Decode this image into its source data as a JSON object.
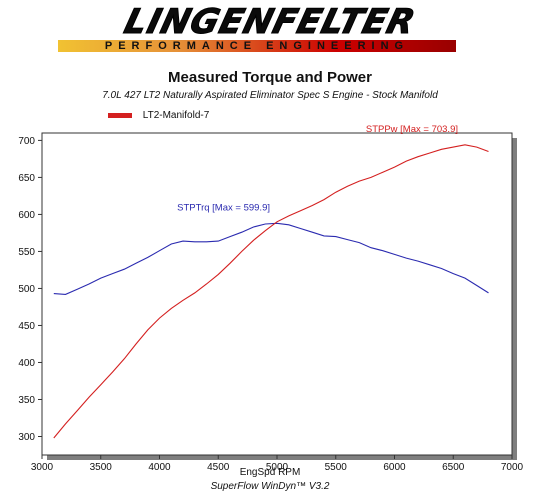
{
  "logo": {
    "wordmark": "LINGENFELTER",
    "tagline": "PERFORMANCE ENGINEERING"
  },
  "footer": "SuperFlow WinDyn™ V3.2",
  "chart_data": {
    "type": "line",
    "title": "Measured Torque and Power",
    "subtitle": "7.0L 427 LT2 Naturally Aspirated Eliminator Spec S Engine - Stock Manifold",
    "legend": {
      "entries": [
        "LT2-Manifold-7"
      ],
      "placement": "top-left"
    },
    "xlabel": "EngSpd RPM",
    "ylabel": "",
    "xlim": [
      3000,
      7000
    ],
    "ylim": [
      275,
      710
    ],
    "xticks": [
      3000,
      3500,
      4000,
      4500,
      5000,
      5500,
      6000,
      6500,
      7000
    ],
    "yticks": [
      300,
      350,
      400,
      450,
      500,
      550,
      600,
      650,
      700
    ],
    "grid": false,
    "series": [
      {
        "name": "STPTrq",
        "color": "#2b2bb0",
        "annotation": "STPTrq [Max = 599.9]",
        "x": [
          3100,
          3200,
          3300,
          3400,
          3500,
          3600,
          3700,
          3800,
          3900,
          4000,
          4100,
          4200,
          4300,
          4400,
          4500,
          4600,
          4700,
          4800,
          4900,
          5000,
          5100,
          5200,
          5300,
          5400,
          5500,
          5600,
          5700,
          5800,
          5900,
          6000,
          6100,
          6200,
          6300,
          6400,
          6500,
          6600,
          6700,
          6800
        ],
        "values": [
          493,
          492,
          499,
          506,
          514,
          520,
          526,
          534,
          542,
          551,
          560,
          564,
          563,
          563,
          564,
          570,
          576,
          583,
          587,
          588,
          586,
          581,
          576,
          571,
          570,
          566,
          562,
          555,
          551,
          546,
          541,
          537,
          532,
          527,
          520,
          514,
          504,
          494
        ]
      },
      {
        "name": "STPPw",
        "color": "#d42020",
        "annotation": "STPPw [Max = 703.9]",
        "x": [
          3100,
          3200,
          3300,
          3400,
          3500,
          3600,
          3700,
          3800,
          3900,
          4000,
          4100,
          4200,
          4300,
          4400,
          4500,
          4600,
          4700,
          4800,
          4900,
          5000,
          5100,
          5200,
          5300,
          5400,
          5500,
          5600,
          5700,
          5800,
          5900,
          6000,
          6100,
          6200,
          6300,
          6400,
          6500,
          6600,
          6700,
          6800
        ],
        "values": [
          298,
          317,
          335,
          353,
          370,
          387,
          405,
          425,
          444,
          460,
          473,
          484,
          494,
          506,
          519,
          534,
          550,
          565,
          578,
          590,
          598,
          605,
          612,
          620,
          630,
          638,
          645,
          650,
          657,
          664,
          672,
          678,
          683,
          688,
          691,
          694,
          691,
          685
        ]
      }
    ]
  }
}
